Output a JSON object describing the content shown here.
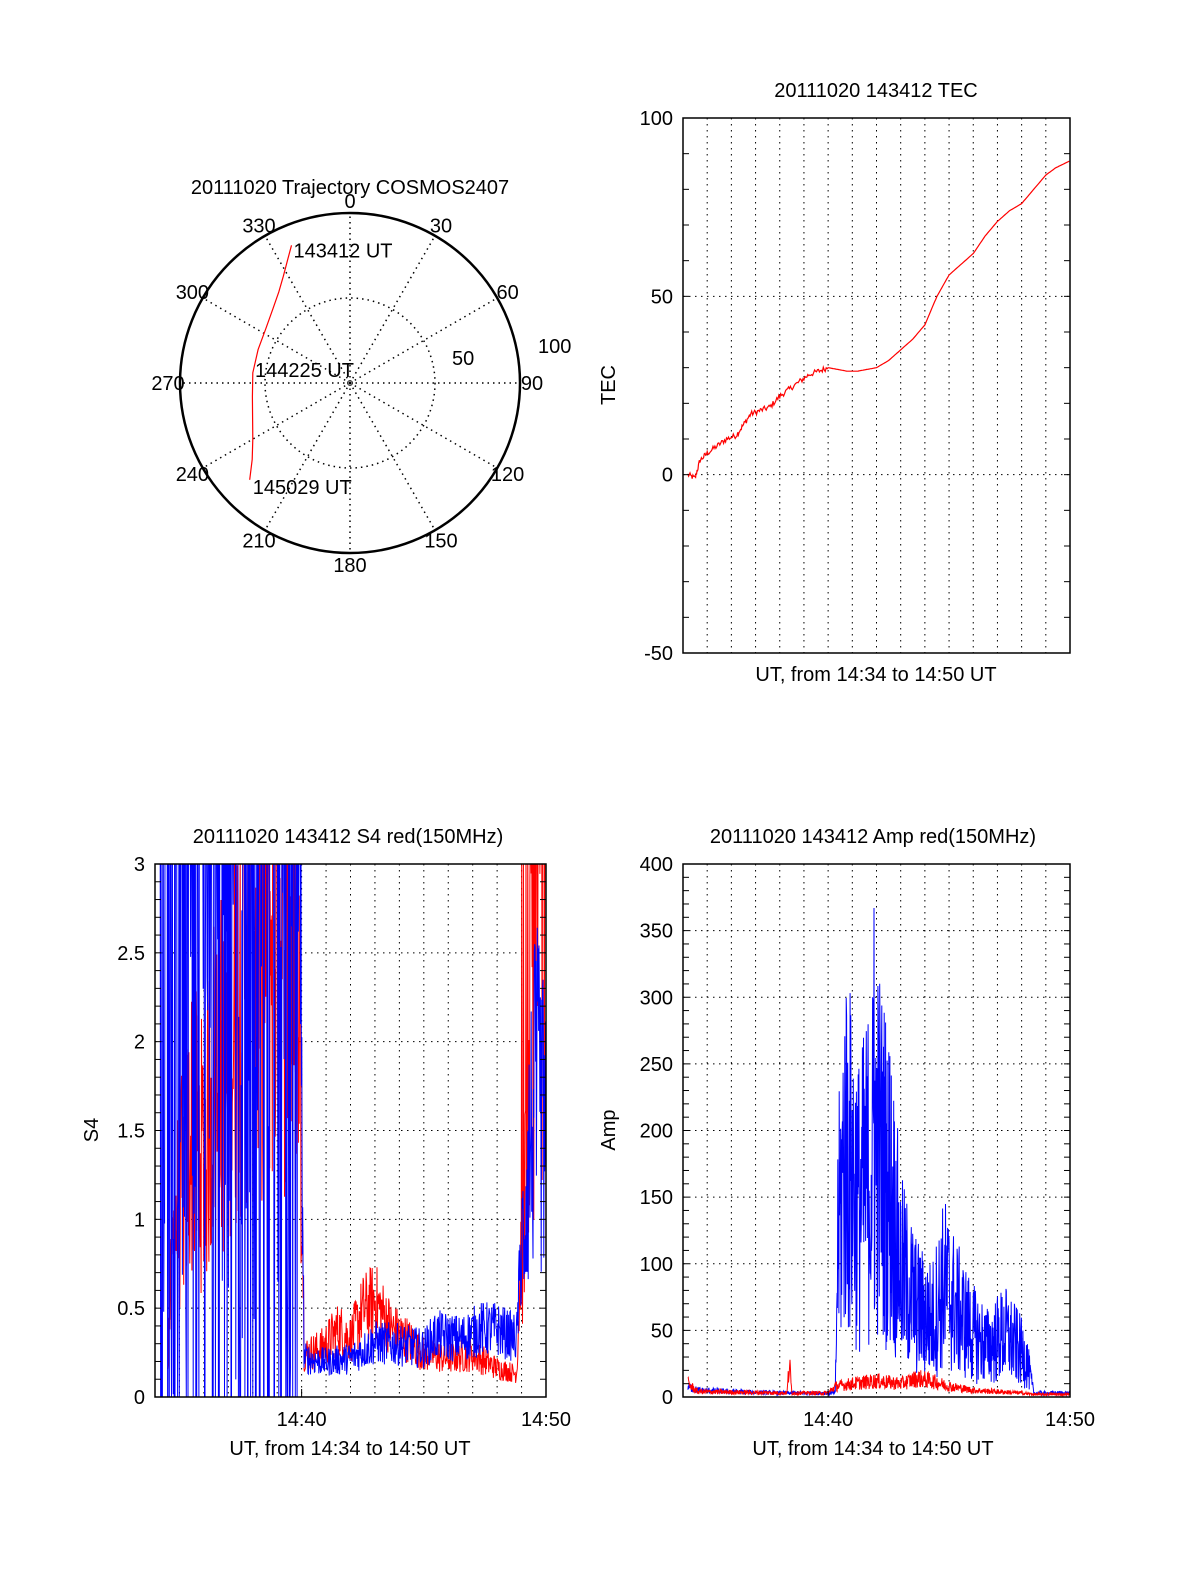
{
  "chart_data": [
    {
      "id": "trajectory",
      "type": "polar",
      "title": "20111020 Trajectory COSMOS2407",
      "azimuth_labels": [
        "0",
        "30",
        "60",
        "90",
        "120",
        "150",
        "180",
        "210",
        "240",
        "270",
        "300",
        "330"
      ],
      "radial_labels": [
        {
          "value": 50,
          "text": "50"
        },
        {
          "value": 100,
          "text": "100"
        }
      ],
      "radial_range": [
        0,
        100
      ],
      "track_color": "#ff0000",
      "track": {
        "azimuth_deg": [
          337,
          333,
          328,
          322,
          314,
          303,
          290,
          276,
          262,
          250,
          240,
          232,
          226
        ],
        "zenith": [
          88,
          81,
          74,
          68,
          63,
          59,
          57.5,
          57.5,
          58,
          61,
          66,
          73,
          82
        ]
      },
      "annotations": [
        {
          "text": "143412 UT",
          "point": "start"
        },
        {
          "text": "144225 UT",
          "point": "mid"
        },
        {
          "text": "145029 UT",
          "point": "end"
        }
      ]
    },
    {
      "id": "tec",
      "type": "line",
      "title": "20111020 143412 TEC",
      "xlabel": "UT, from 14:34 to 14:50 UT",
      "ylabel": "TEC",
      "xlim": [
        0,
        16
      ],
      "ylim": [
        -50,
        100
      ],
      "yticks": [
        -50,
        0,
        50,
        100
      ],
      "xgrid_step_min": 1,
      "grid": true,
      "series": [
        {
          "name": "TEC",
          "color": "#ff0000",
          "x": [
            0.2,
            0.5,
            0.7,
            1.0,
            1.4,
            1.8,
            2.2,
            2.5,
            2.8,
            3.2,
            3.6,
            4.0,
            4.4,
            4.8,
            5.2,
            5.6,
            6.0,
            6.4,
            6.8,
            7.2,
            7.6,
            8.0,
            8.5,
            9.0,
            9.5,
            10.0,
            10.5,
            11.0,
            11.5,
            12.0,
            12.5,
            13.0,
            13.5,
            14.0,
            14.5,
            15.0,
            15.4,
            15.7,
            16.0
          ],
          "y": [
            0,
            -1,
            4,
            6,
            8,
            10,
            11,
            14,
            17,
            18,
            19,
            22,
            24,
            26,
            28,
            29,
            30,
            29.5,
            29,
            29,
            29.5,
            30,
            32,
            35,
            38,
            42,
            50,
            56,
            59,
            62,
            67,
            71,
            74,
            76,
            80,
            84,
            86,
            87,
            88
          ]
        }
      ]
    },
    {
      "id": "s4",
      "type": "line",
      "title": "20111020 143412 S4 red(150MHz)",
      "xlabel": "UT, from 14:34 to 14:50 UT",
      "ylabel": "S4",
      "xlim": [
        0,
        16
      ],
      "ylim": [
        0,
        3
      ],
      "yticks": [
        0,
        0.5,
        1,
        1.5,
        2,
        2.5,
        3
      ],
      "ytick_labels": [
        "0",
        "0.5",
        "1",
        "1.5",
        "2",
        "2.5",
        "3"
      ],
      "xticks": [
        6,
        16
      ],
      "xtick_labels": [
        "14:40",
        "14:50"
      ],
      "grid": true,
      "series": [
        {
          "name": "red",
          "color": "#ff0000",
          "profile": [
            [
              0.5,
              0.25
            ],
            [
              0.8,
              1.0
            ],
            [
              1.2,
              1.3
            ],
            [
              1.5,
              1.6
            ],
            [
              2.0,
              1.4
            ],
            [
              2.5,
              2.0
            ],
            [
              3.0,
              1.8
            ],
            [
              3.5,
              2.5
            ],
            [
              4.0,
              2.6
            ],
            [
              5.0,
              2.8
            ],
            [
              5.9,
              2.6
            ],
            [
              6.1,
              0.22
            ],
            [
              6.8,
              0.25
            ],
            [
              7.5,
              0.35
            ],
            [
              8.0,
              0.3
            ],
            [
              8.5,
              0.45
            ],
            [
              9.0,
              0.5
            ],
            [
              9.7,
              0.35
            ],
            [
              10.3,
              0.3
            ],
            [
              11.0,
              0.22
            ],
            [
              12.0,
              0.2
            ],
            [
              13.0,
              0.22
            ],
            [
              14.0,
              0.15
            ],
            [
              14.8,
              0.12
            ],
            [
              15.2,
              1.5
            ],
            [
              15.6,
              2.8
            ],
            [
              16.0,
              3.0
            ]
          ]
        },
        {
          "name": "blue",
          "color": "#0000ff",
          "profile": [
            [
              0.2,
              0.8
            ],
            [
              0.5,
              1.5
            ],
            [
              1.0,
              3.0
            ],
            [
              2.0,
              3.0
            ],
            [
              3.0,
              3.0
            ],
            [
              4.0,
              3.0
            ],
            [
              5.0,
              3.0
            ],
            [
              5.9,
              3.0
            ],
            [
              6.1,
              0.2
            ],
            [
              7.0,
              0.18
            ],
            [
              8.0,
              0.2
            ],
            [
              9.0,
              0.28
            ],
            [
              10.0,
              0.27
            ],
            [
              11.0,
              0.25
            ],
            [
              11.5,
              0.32
            ],
            [
              12.5,
              0.3
            ],
            [
              13.3,
              0.35
            ],
            [
              14.0,
              0.35
            ],
            [
              14.8,
              0.3
            ],
            [
              15.2,
              1.3
            ],
            [
              15.6,
              1.8
            ],
            [
              16.0,
              1.5
            ]
          ]
        }
      ]
    },
    {
      "id": "amp",
      "type": "line",
      "title": "20111020 143412 Amp red(150MHz)",
      "xlabel": "UT, from 14:34 to 14:50 UT",
      "ylabel": "Amp",
      "xlim": [
        0,
        16
      ],
      "ylim": [
        0,
        400
      ],
      "yticks": [
        0,
        50,
        100,
        150,
        200,
        250,
        300,
        350,
        400
      ],
      "ytick_labels": [
        "0",
        "50",
        "100",
        "150",
        "200",
        "250",
        "300",
        "350",
        "400"
      ],
      "xticks": [
        6,
        16
      ],
      "xtick_labels": [
        "14:40",
        "14:50"
      ],
      "grid": true,
      "series": [
        {
          "name": "blue",
          "color": "#0000ff",
          "profile": [
            [
              0.2,
              8
            ],
            [
              0.6,
              5
            ],
            [
              2.0,
              4
            ],
            [
              4.0,
              3
            ],
            [
              6.0,
              3
            ],
            [
              6.3,
              3
            ],
            [
              6.4,
              120
            ],
            [
              6.7,
              200
            ],
            [
              7.3,
              150
            ],
            [
              8.0,
              200
            ],
            [
              8.6,
              160
            ],
            [
              9.0,
              100
            ],
            [
              9.7,
              70
            ],
            [
              10.3,
              60
            ],
            [
              10.8,
              90
            ],
            [
              11.3,
              70
            ],
            [
              12.0,
              50
            ],
            [
              12.6,
              40
            ],
            [
              13.3,
              50
            ],
            [
              13.8,
              40
            ],
            [
              14.2,
              30
            ],
            [
              14.5,
              3
            ],
            [
              16.0,
              3
            ]
          ],
          "peak": 367
        },
        {
          "name": "red",
          "color": "#ff0000",
          "profile": [
            [
              0.2,
              10
            ],
            [
              0.6,
              4
            ],
            [
              4.3,
              3
            ],
            [
              4.4,
              25
            ],
            [
              4.5,
              3
            ],
            [
              6.0,
              3
            ],
            [
              6.3,
              8
            ],
            [
              7.0,
              10
            ],
            [
              8.0,
              12
            ],
            [
              9.0,
              10
            ],
            [
              9.7,
              14
            ],
            [
              10.3,
              12
            ],
            [
              11.0,
              8
            ],
            [
              12.0,
              5
            ],
            [
              13.0,
              4
            ],
            [
              14.0,
              3
            ],
            [
              14.5,
              2
            ],
            [
              16.0,
              2
            ]
          ]
        }
      ]
    }
  ]
}
